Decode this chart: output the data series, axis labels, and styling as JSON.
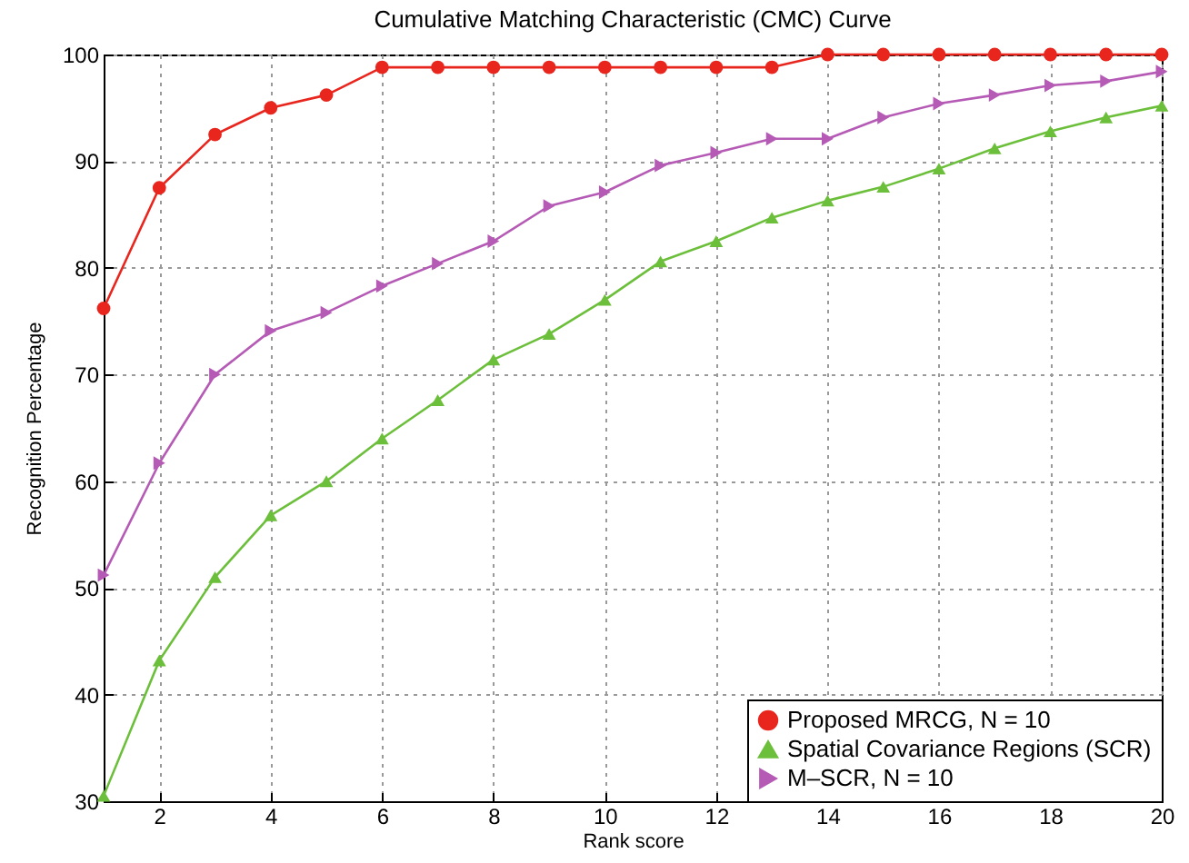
{
  "chart_data": {
    "type": "line",
    "title": "Cumulative Matching Characteristic (CMC) Curve",
    "xlabel": "Rank score",
    "ylabel": "Recognition Percentage",
    "x": [
      1,
      2,
      3,
      4,
      5,
      6,
      7,
      8,
      9,
      10,
      11,
      12,
      13,
      14,
      15,
      16,
      17,
      18,
      19,
      20
    ],
    "series": [
      {
        "name": "Proposed MRCG, N = 10",
        "color": "#e8261e",
        "marker": "circle",
        "values": [
          76.2,
          87.5,
          92.5,
          95,
          96.2,
          98.8,
          98.8,
          98.8,
          98.8,
          98.8,
          98.8,
          98.8,
          98.8,
          100,
          100,
          100,
          100,
          100,
          100,
          100
        ]
      },
      {
        "name": "Spatial Covariance Regions (SCR)",
        "color": "#6cbf3a",
        "marker": "triangle",
        "values": [
          30.5,
          43.2,
          51,
          56.8,
          60,
          64,
          67.6,
          71.4,
          73.8,
          77,
          80.6,
          82.5,
          84.7,
          86.3,
          87.6,
          89.3,
          91.2,
          92.8,
          94.1,
          95.2
        ]
      },
      {
        "name": "M–SCR, N = 10",
        "color": "#b55ab5",
        "marker": "triangle-right",
        "values": [
          51.2,
          61.7,
          70,
          74.1,
          75.8,
          78.3,
          80.4,
          82.5,
          85.8,
          87.1,
          89.6,
          90.8,
          92.1,
          92.1,
          94.1,
          95.4,
          96.2,
          97.1,
          97.5,
          98.4
        ]
      }
    ],
    "xlim": [
      1,
      20
    ],
    "xticks": [
      2,
      4,
      6,
      8,
      10,
      12,
      14,
      16,
      18,
      20
    ],
    "ylim": [
      30,
      100
    ],
    "yticks": [
      30,
      40,
      50,
      60,
      70,
      80,
      90,
      100
    ],
    "grid": true,
    "legend": "bottom right",
    "line_style": "solid"
  }
}
